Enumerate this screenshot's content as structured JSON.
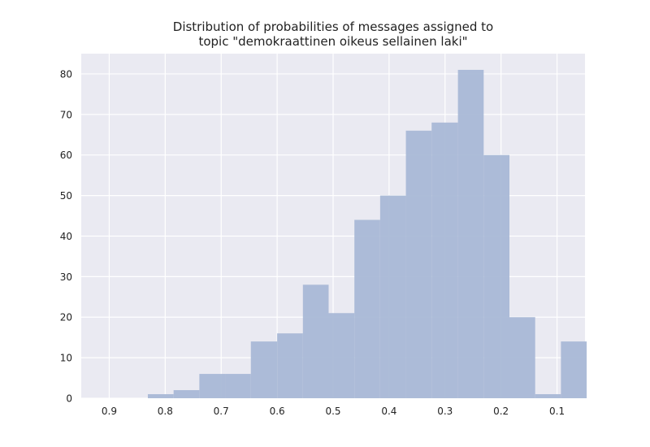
{
  "chart_data": {
    "type": "bar",
    "title_lines": [
      "Distribution of probabilities of messages assigned to",
      "topic \"demokraattinen oikeus sellainen laki\""
    ],
    "xlabel": "",
    "ylabel": "",
    "x_axis_inverted": true,
    "xlim": [
      0.95,
      0.05
    ],
    "ylim": [
      0,
      85
    ],
    "x_ticks": [
      "0.9",
      "0.8",
      "0.7",
      "0.6",
      "0.5",
      "0.4",
      "0.3",
      "0.2",
      "0.1"
    ],
    "x_tick_values": [
      0.9,
      0.8,
      0.7,
      0.6,
      0.5,
      0.4,
      0.3,
      0.2,
      0.1
    ],
    "y_ticks": [
      "0",
      "10",
      "20",
      "30",
      "40",
      "50",
      "60",
      "70",
      "80"
    ],
    "y_tick_values": [
      0,
      10,
      20,
      30,
      40,
      50,
      60,
      70,
      80
    ],
    "bins": [
      {
        "x_start": 0.831,
        "x_end": 0.785,
        "count": 1
      },
      {
        "x_start": 0.785,
        "x_end": 0.739,
        "count": 2
      },
      {
        "x_start": 0.739,
        "x_end": 0.693,
        "count": 6
      },
      {
        "x_start": 0.693,
        "x_end": 0.647,
        "count": 6
      },
      {
        "x_start": 0.647,
        "x_end": 0.6,
        "count": 14
      },
      {
        "x_start": 0.6,
        "x_end": 0.554,
        "count": 16
      },
      {
        "x_start": 0.554,
        "x_end": 0.508,
        "count": 28
      },
      {
        "x_start": 0.508,
        "x_end": 0.462,
        "count": 21
      },
      {
        "x_start": 0.462,
        "x_end": 0.416,
        "count": 44
      },
      {
        "x_start": 0.416,
        "x_end": 0.37,
        "count": 50
      },
      {
        "x_start": 0.37,
        "x_end": 0.324,
        "count": 66
      },
      {
        "x_start": 0.324,
        "x_end": 0.277,
        "count": 68
      },
      {
        "x_start": 0.277,
        "x_end": 0.231,
        "count": 81
      },
      {
        "x_start": 0.231,
        "x_end": 0.185,
        "count": 60
      },
      {
        "x_start": 0.185,
        "x_end": 0.139,
        "count": 20
      },
      {
        "x_start": 0.139,
        "x_end": 0.093,
        "count": 1
      },
      {
        "x_start": 0.093,
        "x_end": 0.047,
        "count": 14
      }
    ],
    "grid": true,
    "legend": "none",
    "colors": {
      "plot_background": "#eaeaf2",
      "grid": "#ffffff",
      "bar": "#a9b8d6",
      "text": "#222222"
    }
  }
}
